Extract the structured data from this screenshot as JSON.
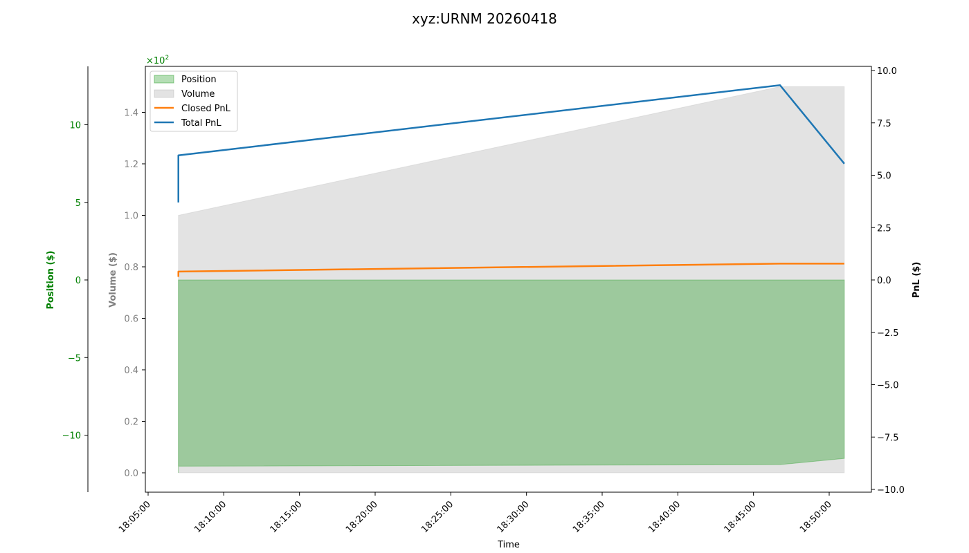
{
  "chart_data": {
    "type": "area",
    "title": "xyz:URNM 20260418",
    "xlabel": "Time",
    "x_ticks": [
      "18:05:00",
      "18:10:00",
      "18:15:00",
      "18:20:00",
      "18:25:00",
      "18:30:00",
      "18:35:00",
      "18:40:00",
      "18:45:00",
      "18:50:00"
    ],
    "axes": {
      "position": {
        "label": "Position ($)",
        "color": "#008000",
        "ticks": [
          10,
          5,
          0,
          -5,
          -10
        ],
        "tick_labels": [
          "10",
          "5",
          "0",
          "−5",
          "−10"
        ],
        "range": [
          -13.5,
          13.9
        ]
      },
      "volume": {
        "label": "Volume ($)",
        "color": "#808080",
        "ticks": [
          0,
          0.2,
          0.4,
          0.6,
          0.8,
          1.0,
          1.2,
          1.4
        ],
        "tick_labels": [
          "0.0",
          "0.2",
          "0.4",
          "0.6",
          "0.8",
          "1.0",
          "1.2",
          "1.4"
        ],
        "multiplier_label": "×10",
        "multiplier_exp": "2",
        "range": [
          -0.075,
          1.575
        ]
      },
      "pnl": {
        "label": "PnL ($)",
        "color": "#000000",
        "ticks": [
          10,
          7.5,
          5,
          2.5,
          0,
          -2.5,
          -5,
          -7.5,
          -10
        ],
        "tick_labels": [
          "10.0",
          "7.5",
          "5.0",
          "2.5",
          "0.0",
          "−2.5",
          "−5.0",
          "−7.5",
          "−10.0"
        ],
        "range": [
          -10.1,
          10.2
        ]
      }
    },
    "legend_position": "top-left",
    "series": [
      {
        "name": "Position",
        "kind": "area",
        "axis": "position",
        "color": "#2ca02c",
        "t": [
          "18:07:00",
          "18:07:00",
          "18:46:45",
          "18:51:00"
        ],
        "values": [
          0,
          0,
          0,
          0
        ]
      },
      {
        "name": "Volume",
        "kind": "area",
        "axis": "volume",
        "color": "#b0b0b0",
        "t": [
          "18:07:00",
          "18:46:45",
          "18:51:00"
        ],
        "values": [
          1.0,
          1.5,
          1.5
        ]
      },
      {
        "name": "Closed PnL",
        "kind": "line",
        "axis": "pnl",
        "color": "#ff7f0e",
        "t": [
          "18:07:00",
          "18:07:00",
          "18:46:45",
          "18:51:00"
        ],
        "values": [
          0.15,
          0.4,
          0.78,
          0.78
        ]
      },
      {
        "name": "Total PnL",
        "kind": "line",
        "axis": "pnl",
        "color": "#1f77b4",
        "t": [
          "18:07:00",
          "18:07:00",
          "18:46:45",
          "18:51:00"
        ],
        "values": [
          3.7,
          5.95,
          9.3,
          5.55
        ]
      }
    ],
    "position_band": {
      "upper": [
        0,
        0,
        0
      ],
      "lower": [
        -12,
        -11.9,
        -11.5
      ],
      "t": [
        "18:07:00",
        "18:46:45",
        "18:51:00"
      ]
    }
  }
}
